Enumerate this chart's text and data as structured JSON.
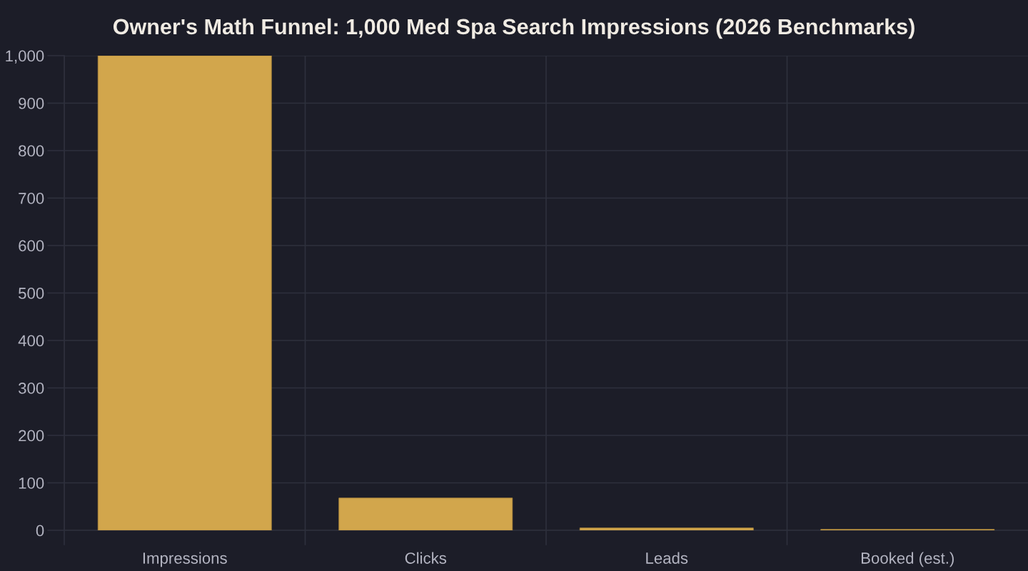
{
  "chart_data": {
    "type": "bar",
    "title": "Owner's Math Funnel: 1,000 Med Spa Search Impressions (2026 Benchmarks)",
    "categories": [
      "Impressions",
      "Clicks",
      "Leads",
      "Booked (est.)"
    ],
    "values": [
      1000,
      68,
      5,
      2
    ],
    "color": "#d2a64c",
    "ylim": [
      0,
      1000
    ],
    "yticks": [
      0,
      100,
      200,
      300,
      400,
      500,
      600,
      700,
      800,
      900,
      {
        "value": 1000,
        "label": "1,000"
      }
    ],
    "grid": true
  }
}
